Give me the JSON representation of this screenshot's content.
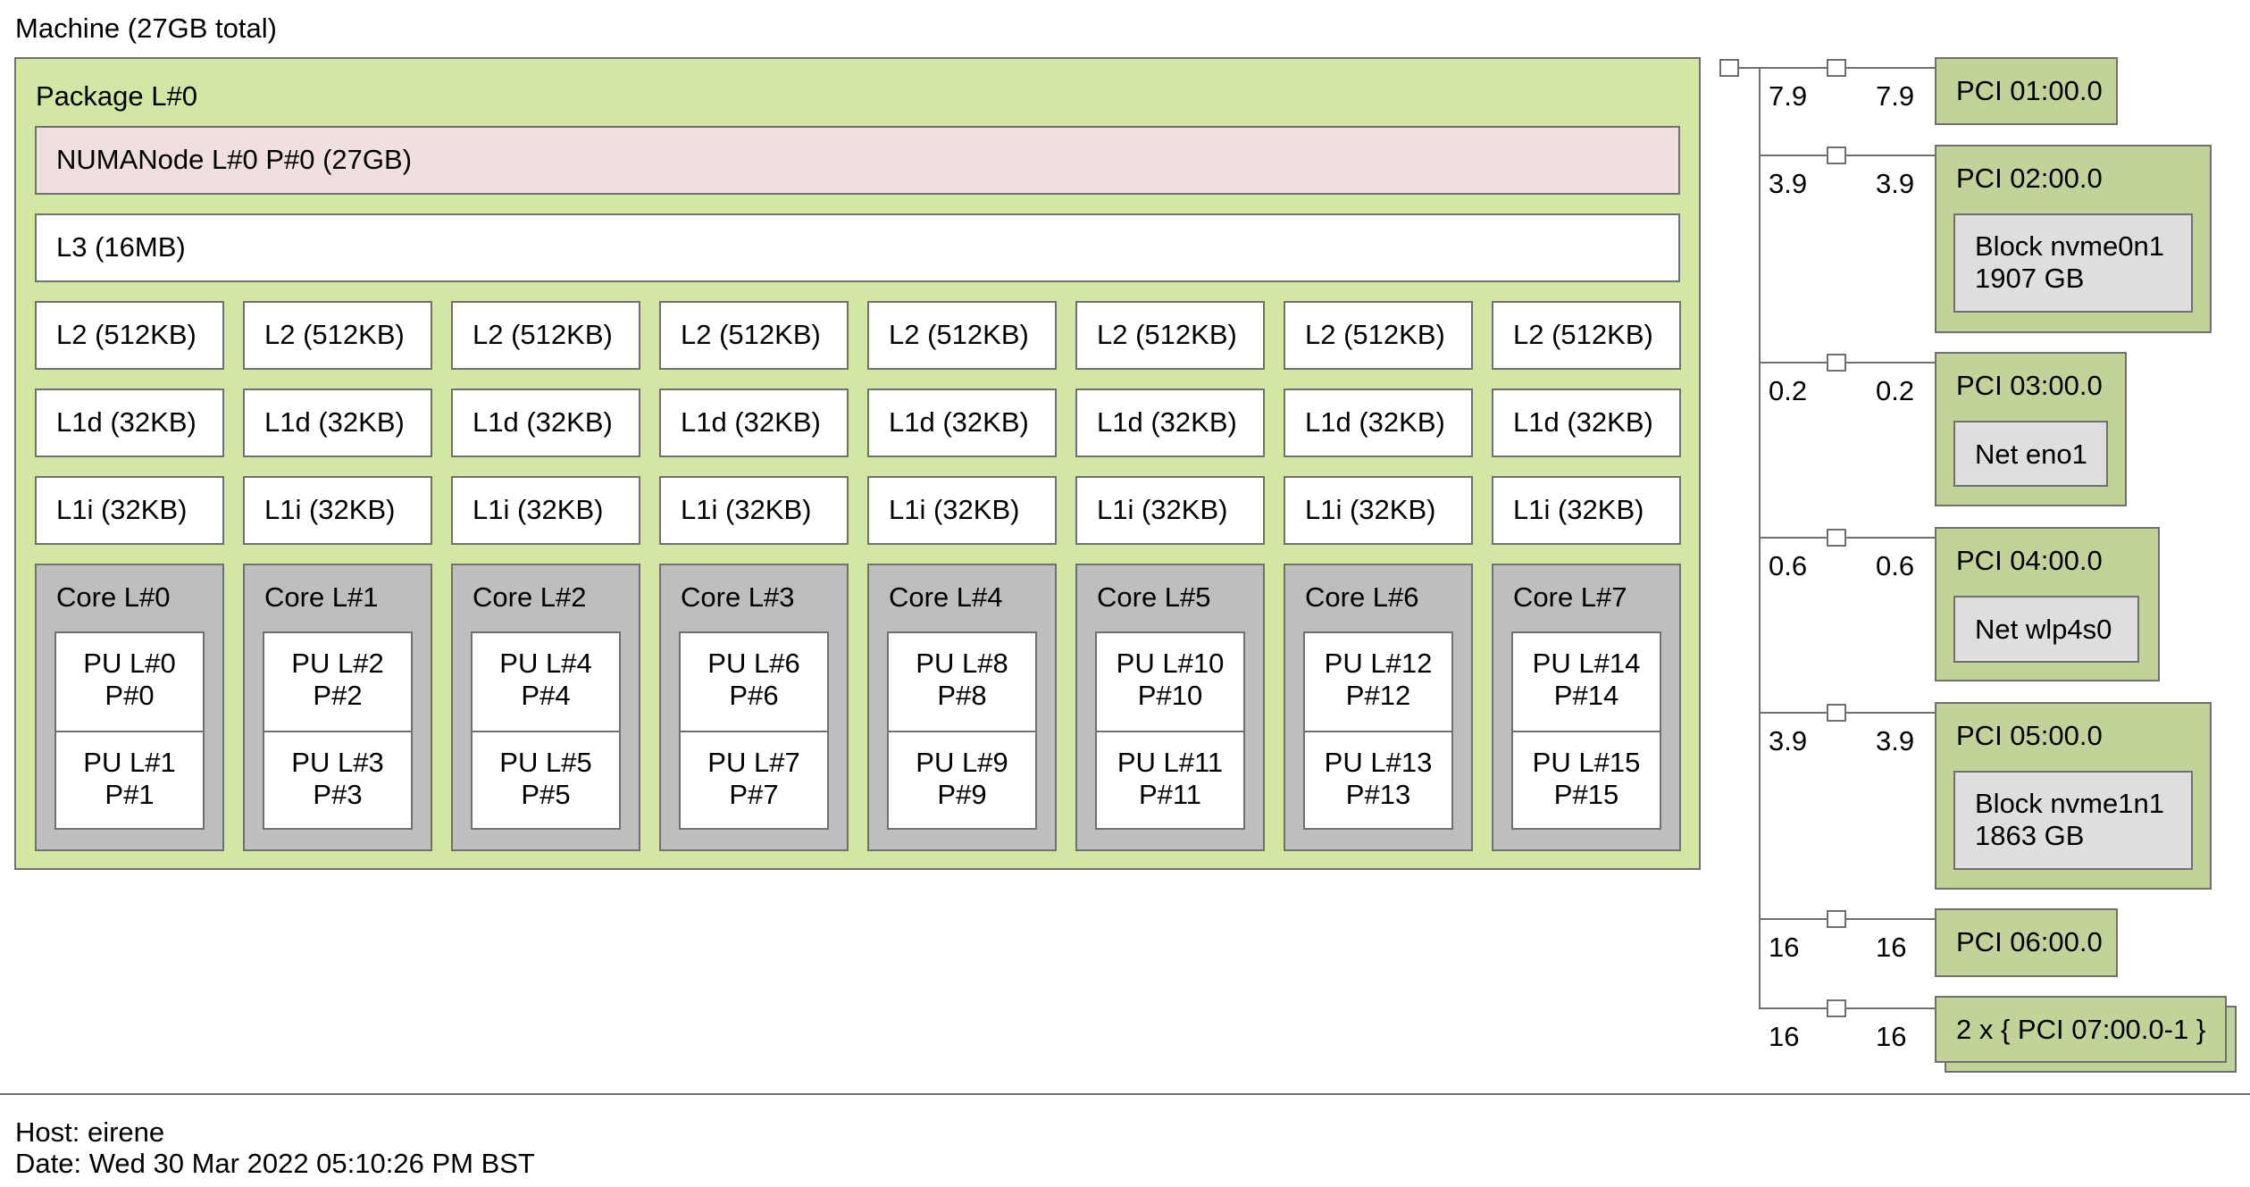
{
  "machine": {
    "title": "Machine (27GB total)"
  },
  "colors": {
    "package": "#d2e7a4",
    "numa": "#efdfde",
    "cache": "#ffffff",
    "core": "#bebebe",
    "pu": "#ffffff",
    "pci": "#c1d399",
    "osdev": "#dedede",
    "border": "#707070"
  },
  "package": {
    "title": "Package L#0",
    "numa": "NUMANode L#0 P#0 (27GB)",
    "l3": "L3 (16MB)",
    "cores": [
      {
        "l2": "L2 (512KB)",
        "l1d": "L1d (32KB)",
        "l1i": "L1i (32KB)",
        "label": "Core L#0",
        "pus": [
          [
            "PU L#0",
            "P#0"
          ],
          [
            "PU L#1",
            "P#1"
          ]
        ]
      },
      {
        "l2": "L2 (512KB)",
        "l1d": "L1d (32KB)",
        "l1i": "L1i (32KB)",
        "label": "Core L#1",
        "pus": [
          [
            "PU L#2",
            "P#2"
          ],
          [
            "PU L#3",
            "P#3"
          ]
        ]
      },
      {
        "l2": "L2 (512KB)",
        "l1d": "L1d (32KB)",
        "l1i": "L1i (32KB)",
        "label": "Core L#2",
        "pus": [
          [
            "PU L#4",
            "P#4"
          ],
          [
            "PU L#5",
            "P#5"
          ]
        ]
      },
      {
        "l2": "L2 (512KB)",
        "l1d": "L1d (32KB)",
        "l1i": "L1i (32KB)",
        "label": "Core L#3",
        "pus": [
          [
            "PU L#6",
            "P#6"
          ],
          [
            "PU L#7",
            "P#7"
          ]
        ]
      },
      {
        "l2": "L2 (512KB)",
        "l1d": "L1d (32KB)",
        "l1i": "L1i (32KB)",
        "label": "Core L#4",
        "pus": [
          [
            "PU L#8",
            "P#8"
          ],
          [
            "PU L#9",
            "P#9"
          ]
        ]
      },
      {
        "l2": "L2 (512KB)",
        "l1d": "L1d (32KB)",
        "l1i": "L1i (32KB)",
        "label": "Core L#5",
        "pus": [
          [
            "PU L#10",
            "P#10"
          ],
          [
            "PU L#11",
            "P#11"
          ]
        ]
      },
      {
        "l2": "L2 (512KB)",
        "l1d": "L1d (32KB)",
        "l1i": "L1i (32KB)",
        "label": "Core L#6",
        "pus": [
          [
            "PU L#12",
            "P#12"
          ],
          [
            "PU L#13",
            "P#13"
          ]
        ]
      },
      {
        "l2": "L2 (512KB)",
        "l1d": "L1d (32KB)",
        "l1i": "L1i (32KB)",
        "label": "Core L#7",
        "pus": [
          [
            "PU L#14",
            "P#14"
          ],
          [
            "PU L#15",
            "P#15"
          ]
        ]
      }
    ]
  },
  "pci": [
    {
      "left": "7.9",
      "right": "7.9",
      "label": "PCI 01:00.0"
    },
    {
      "left": "3.9",
      "right": "3.9",
      "label": "PCI 02:00.0",
      "child": [
        "Block nvme0n1",
        "1907 GB"
      ]
    },
    {
      "left": "0.2",
      "right": "0.2",
      "label": "PCI 03:00.0",
      "child": [
        "Net eno1"
      ]
    },
    {
      "left": "0.6",
      "right": "0.6",
      "label": "PCI 04:00.0",
      "child": [
        "Net wlp4s0"
      ]
    },
    {
      "left": "3.9",
      "right": "3.9",
      "label": "PCI 05:00.0",
      "child": [
        "Block nvme1n1",
        "1863 GB"
      ]
    },
    {
      "left": "16",
      "right": "16",
      "label": "PCI 06:00.0"
    },
    {
      "left": "16",
      "right": "16",
      "label": "2 x { PCI 07:00.0-1 }",
      "multiple": true
    }
  ],
  "footer": {
    "host": "Host: eirene",
    "date": "Date: Wed 30 Mar 2022 05:10:26 PM BST"
  }
}
